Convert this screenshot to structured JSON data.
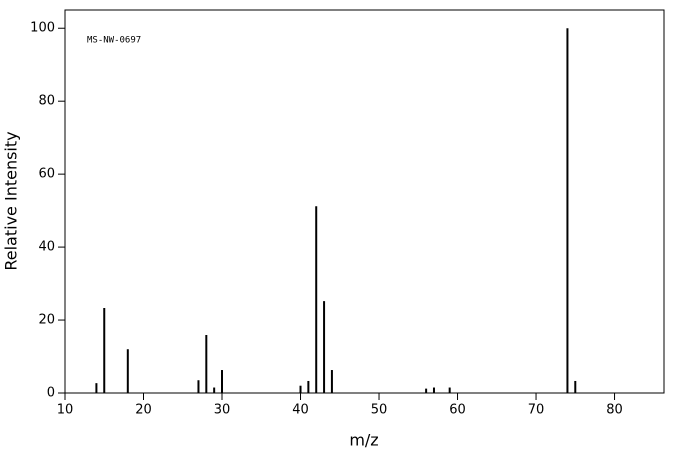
{
  "chart_data": {
    "type": "stem",
    "annotation": "MS-NW-0697",
    "xlabel": "m/z",
    "ylabel": "Relative Intensity",
    "x": [
      14,
      15,
      18,
      27,
      28,
      29,
      30,
      40,
      41,
      42,
      43,
      44,
      56,
      57,
      59,
      74,
      75
    ],
    "values": [
      2.7,
      23.3,
      12,
      3.5,
      15.9,
      1.5,
      6.3,
      2,
      3.3,
      51.2,
      25.2,
      6.3,
      1.2,
      1.5,
      1.5,
      100,
      3.3
    ],
    "color": "#000000",
    "xlim": [
      10,
      86.3
    ],
    "ylim": [
      0,
      105
    ],
    "xticks": [
      10,
      20,
      30,
      40,
      50,
      60,
      70,
      80
    ],
    "yticks": [
      0,
      20,
      40,
      60,
      80,
      100
    ]
  }
}
